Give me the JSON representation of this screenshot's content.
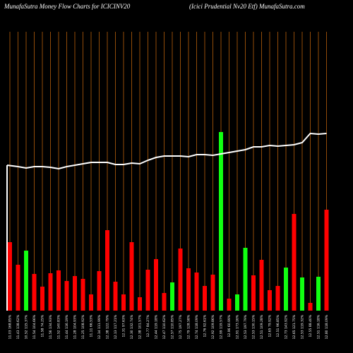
{
  "chart_data": {
    "type": "bar",
    "title": "MunafaSutra  Money Flow  Charts for ICICINV20",
    "subtitle": "(Icici  Prudential Nv20  Etf) MunafaSutra.com",
    "categories": [
      "11.03 168.85%",
      "11.43 138.62%",
      "10.52 115.37%",
      "11.54 104.66%",
      "11.58 74.25%",
      "11.56 134.93%",
      "11.52 140.83%",
      "11.44 116.19%",
      "11.28 104.93%",
      "11.25 108.92%",
      "11.11 66.53%",
      "12.14 111.99%",
      "12.38 122.79%",
      "12.13 117.21%",
      "12.31 97.63%",
      "12.30 132.74%",
      "12.38 101.57%",
      "12.77 84.27%",
      "12.44 119.18%",
      "12.47 110.62%",
      "12.57 110.85%",
      "12.75 197.27%",
      "12.79 128.58%",
      "12.74 118.09%",
      "12.76 92.61%",
      "12.92 109.86%",
      "12.99 119.57%",
      "12.96 60.99%",
      "12.91 173.16%",
      "12.53 197.79%",
      "12.53 130.15%",
      "12.51 109.28%",
      "12.65 79.92%",
      "12.51 96.85%",
      "12.73 143.92%",
      "12.65 121.75%",
      "12.53 119.32%",
      "12.55 88.40%",
      "12.51 116.18%",
      "12.80 118.09%"
    ],
    "values": [
      97,
      65,
      85,
      52,
      34,
      53,
      57,
      42,
      49,
      45,
      23,
      56,
      114,
      41,
      23,
      97,
      19,
      58,
      73,
      25,
      40,
      88,
      60,
      54,
      35,
      51,
      253,
      17,
      23,
      89,
      50,
      72,
      29,
      35,
      61,
      137,
      47,
      11,
      48,
      143
    ],
    "colors": [
      "#f00",
      "#f00",
      "#1f1",
      "#f00",
      "#f00",
      "#f00",
      "#f00",
      "#f00",
      "#f00",
      "#f00",
      "#f00",
      "#f00",
      "#f00",
      "#f00",
      "#f00",
      "#f00",
      "#f00",
      "#f00",
      "#f00",
      "#f00",
      "#1f1",
      "#f00",
      "#f00",
      "#f00",
      "#f00",
      "#f00",
      "#1f1",
      "#f00",
      "#1f1",
      "#1f1",
      "#f00",
      "#f00",
      "#f00",
      "#f00",
      "#1f1",
      "#f00",
      "#1f1",
      "#f00",
      "#1f1",
      "#f00"
    ],
    "line": {
      "color": "#fff",
      "values": [
        206,
        204,
        202,
        204,
        204,
        203,
        201,
        204,
        206,
        208,
        210,
        210,
        210,
        207,
        207,
        209,
        208,
        213,
        217,
        219,
        219,
        219,
        218,
        221,
        221,
        220,
        222,
        224,
        226,
        228,
        232,
        232,
        234,
        233,
        234,
        235,
        238,
        251,
        250,
        251
      ]
    },
    "ylim": [
      0,
      400
    ],
    "grid_color": "#b8600c"
  }
}
